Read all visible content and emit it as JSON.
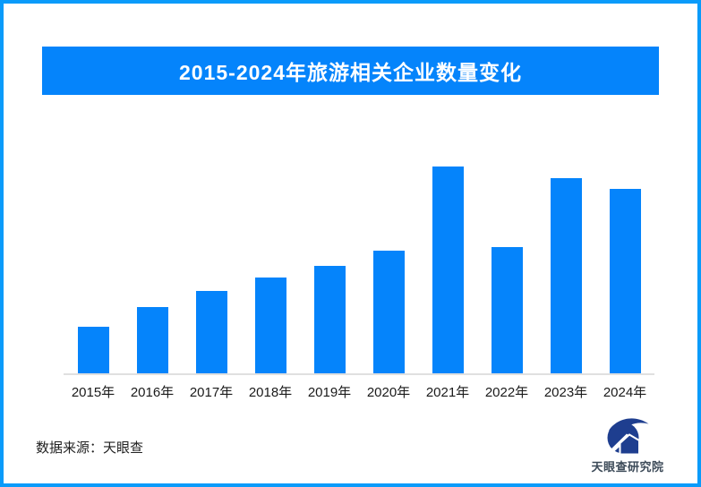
{
  "page": {
    "background": "#FFFFFF",
    "border_color": "#0A9BFA"
  },
  "header": {
    "title": "2015-2024年旅游相关企业数量变化",
    "banner_color": "#0584FB",
    "title_color": "#FFFFFF"
  },
  "chart_data": {
    "type": "bar",
    "title": "2015-2024年旅游相关企业数量变化",
    "categories": [
      "2015年",
      "2016年",
      "2017年",
      "2018年",
      "2019年",
      "2020年",
      "2021年",
      "2022年",
      "2023年",
      "2024年"
    ],
    "values": [
      52,
      74,
      92,
      107,
      120,
      137,
      231,
      141,
      218,
      206
    ],
    "value_scale_note": "no numeric y-axis or data labels shown in image; values are relative bar heights",
    "xlabel": "",
    "ylabel": "",
    "ylim": [
      0,
      235
    ],
    "grid": false,
    "legend": false,
    "bar_color": "#0584FB",
    "axis_line_color": "#E0E0E0",
    "tick_label_color": "#1A1A1A"
  },
  "footer": {
    "source_label": "数据来源：天眼查"
  },
  "logo": {
    "text": "天眼查研究院",
    "mark_color": "#1E3E8F",
    "text_color": "#3C4A58"
  }
}
